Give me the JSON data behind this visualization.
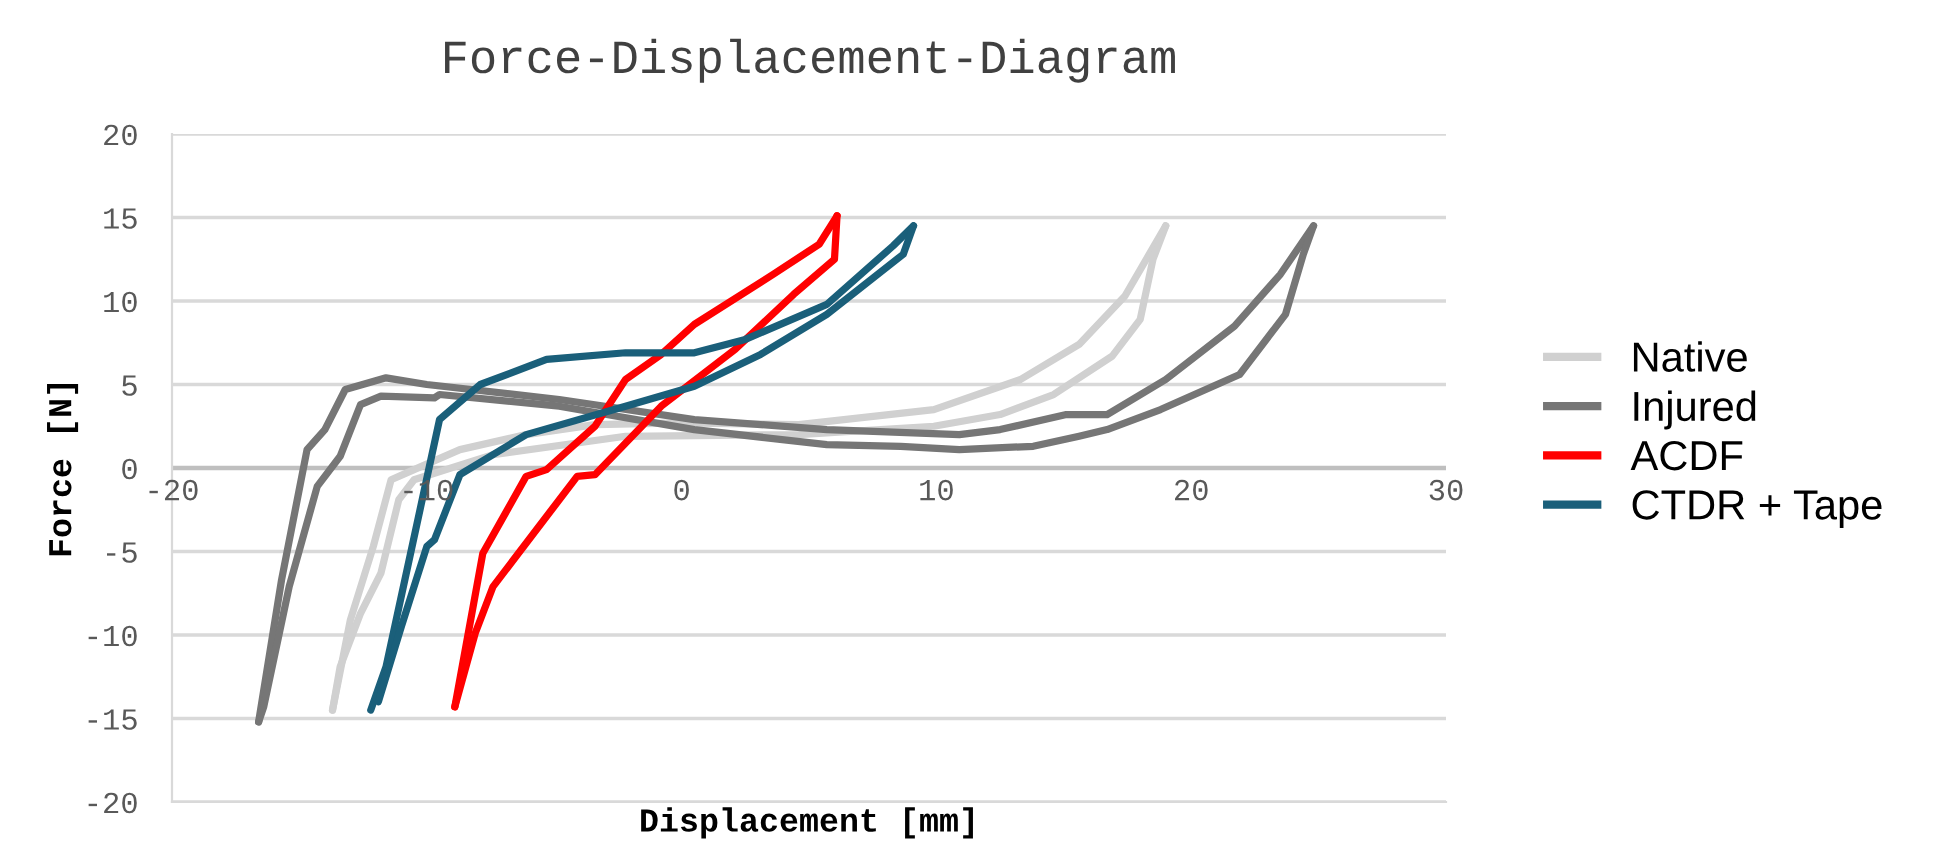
{
  "chart_data": {
    "type": "line",
    "title": "Force-Displacement-Diagram",
    "xlabel": "Displacement [mm]",
    "ylabel": "Force [N]",
    "xlim": [
      -20,
      30
    ],
    "xticks": [
      -20,
      -10,
      0,
      10,
      20,
      30
    ],
    "ylim": [
      -20,
      20
    ],
    "yticks": [
      -20,
      -15,
      -10,
      -5,
      0,
      5,
      10,
      15,
      20
    ],
    "grid": "y",
    "legend": "right",
    "marker": "none",
    "line_style": "solid",
    "series": [
      {
        "name": "Native",
        "color": "#d0d0d0",
        "x": [
          -13.7,
          -13.0,
          -12.1,
          -11.4,
          -10.5,
          -8.7,
          -6.1,
          -3.4,
          0.0,
          4.6,
          9.9,
          13.3,
          15.6,
          17.4,
          19.0
        ],
        "values": [
          -14.5,
          -9.1,
          -4.7,
          -0.7,
          -0.1,
          1.1,
          2.0,
          2.6,
          2.7,
          2.6,
          3.5,
          5.3,
          7.4,
          10.3,
          14.5
        ]
      },
      {
        "color": "#d0d0d0",
        "x": [
          19.0,
          18.5,
          18.0,
          16.9,
          14.6,
          12.5,
          9.9,
          4.6,
          -2.2,
          -7.4,
          -10.5,
          -11.1,
          -11.8,
          -12.6,
          -13.4,
          -13.7
        ],
        "values": [
          14.5,
          12.5,
          8.9,
          6.7,
          4.4,
          3.2,
          2.5,
          2.0,
          1.9,
          0.8,
          -0.7,
          -1.9,
          -6.3,
          -8.7,
          -11.9,
          -14.5
        ]
      },
      {
        "name": "Injured",
        "color": "#767676",
        "x": [
          -16.6,
          -15.7,
          -14.7,
          -14.0,
          -13.2,
          -11.6,
          -10.0,
          -4.8,
          0.5,
          5.7,
          10.9,
          12.5,
          15.1,
          16.7,
          19.0,
          21.7,
          23.5,
          24.8
        ],
        "values": [
          -15.2,
          -6.7,
          1.1,
          2.3,
          4.7,
          5.4,
          5.0,
          4.1,
          2.9,
          2.3,
          2.0,
          2.3,
          3.2,
          3.2,
          5.3,
          8.5,
          11.6,
          14.5
        ]
      },
      {
        "color": "#767676",
        "x": [
          24.8,
          24.4,
          23.7,
          21.9,
          18.8,
          16.7,
          15.6,
          13.8,
          10.9,
          8.6,
          5.7,
          0.5,
          -4.8,
          -9.5,
          -9.7,
          -11.8,
          -12.6,
          -13.4,
          -14.3,
          -15.4,
          -16.4,
          -16.6
        ],
        "values": [
          14.5,
          12.8,
          9.2,
          5.6,
          3.5,
          2.3,
          1.9,
          1.3,
          1.1,
          1.3,
          1.4,
          2.3,
          3.7,
          4.4,
          4.2,
          4.3,
          3.8,
          0.7,
          -1.1,
          -7.1,
          -14.3,
          -15.2
        ]
      },
      {
        "name": "ACDF",
        "color": "#ff0000",
        "x": [
          -8.9,
          -7.8,
          -6.1,
          -5.3,
          -3.4,
          -2.2,
          -0.8,
          0.5,
          3.6,
          5.4,
          6.1
        ],
        "values": [
          -14.3,
          -5.1,
          -0.5,
          -0.1,
          2.5,
          5.3,
          6.8,
          8.6,
          11.6,
          13.4,
          15.1
        ]
      },
      {
        "color": "#ff0000",
        "x": [
          6.1,
          6.0,
          4.4,
          2.1,
          -0.8,
          -3.4,
          -4.1,
          -7.4,
          -8.1,
          -8.9
        ],
        "values": [
          15.1,
          12.5,
          10.4,
          7.1,
          3.7,
          -0.4,
          -0.5,
          -7.1,
          -9.9,
          -14.3
        ]
      },
      {
        "name": "CTDR + Tape",
        "color": "#1a5f7a",
        "x": [
          -12.2,
          -11.6,
          -9.5,
          -7.9,
          -5.3,
          -2.2,
          0.5,
          2.5,
          5.7,
          8.3,
          9.1
        ],
        "values": [
          -14.5,
          -11.9,
          2.9,
          5.0,
          6.5,
          6.9,
          6.9,
          7.7,
          9.8,
          13.3,
          14.5
        ]
      },
      {
        "color": "#1a5f7a",
        "x": [
          9.1,
          8.7,
          5.7,
          3.1,
          0.5,
          -2.2,
          -6.1,
          -8.7,
          -9.7,
          -10.0,
          -11.0,
          -11.9
        ],
        "values": [
          14.5,
          12.8,
          9.2,
          6.8,
          4.9,
          3.7,
          2.0,
          -0.4,
          -4.3,
          -4.7,
          -9.5,
          -14.0
        ]
      }
    ]
  }
}
